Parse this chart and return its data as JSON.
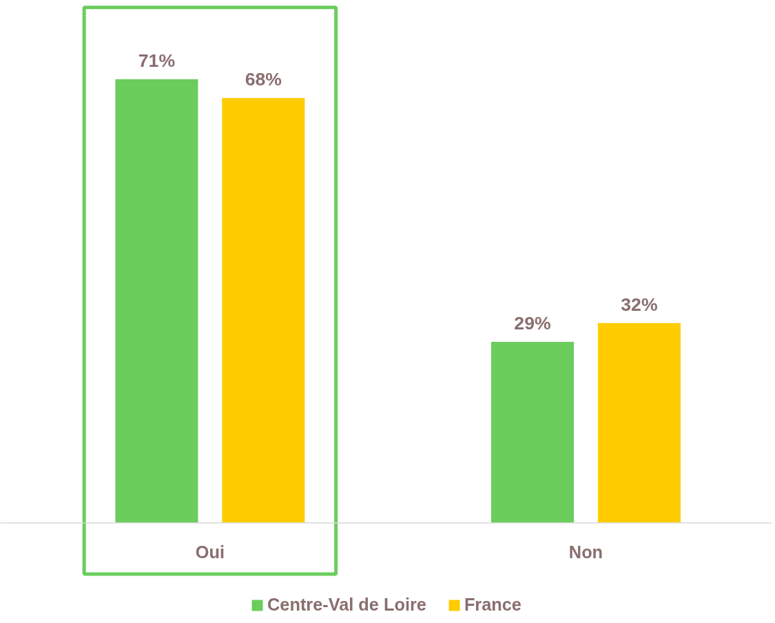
{
  "chart_data": {
    "type": "bar",
    "categories": [
      "Oui",
      "Non"
    ],
    "series": [
      {
        "name": "Centre-Val de Loire",
        "color": "#6acd5c",
        "values": [
          71,
          29
        ],
        "value_labels": [
          "71%",
          "29%"
        ]
      },
      {
        "name": "France",
        "color": "#ffcc00",
        "values": [
          68,
          32
        ],
        "value_labels": [
          "68%",
          "32%"
        ]
      }
    ],
    "legend": "bottom"
  }
}
